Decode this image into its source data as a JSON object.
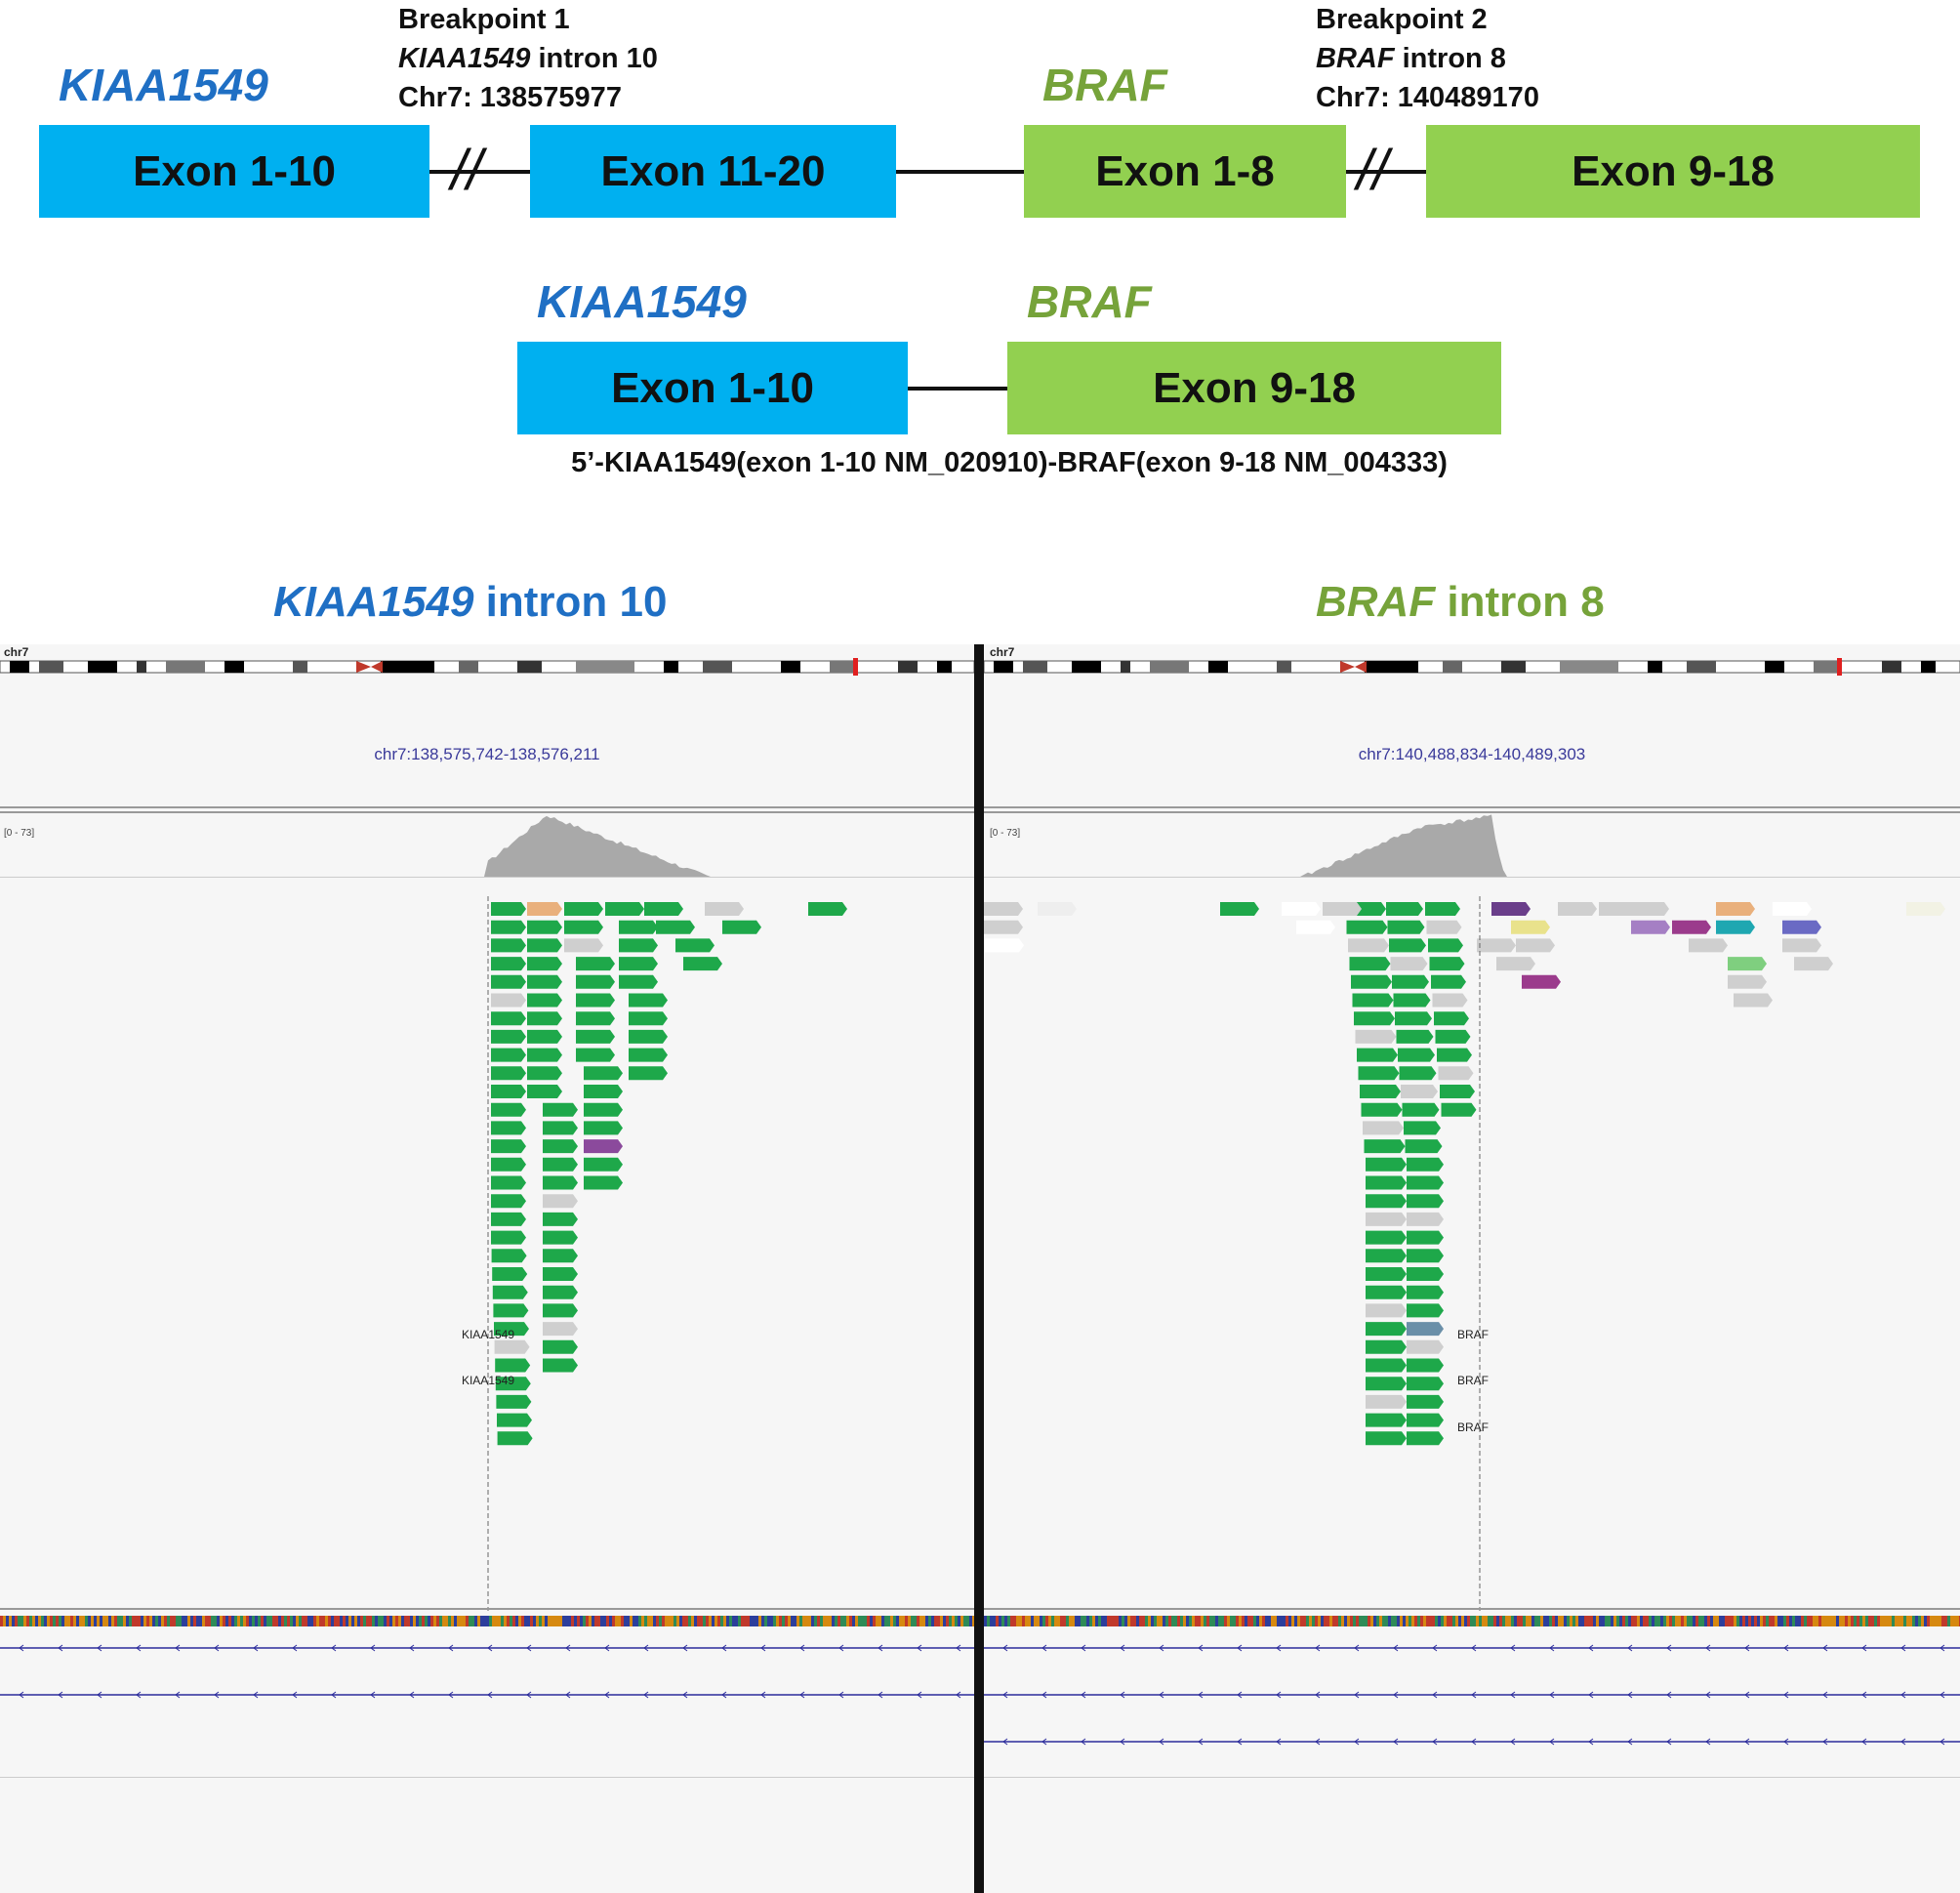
{
  "top": {
    "gene1": "KIAA1549",
    "gene2": "BRAF",
    "breakpoint1": {
      "title": "Breakpoint 1",
      "gene": "KIAA1549",
      "location": " intron 10",
      "coord": "Chr7: 138575977"
    },
    "breakpoint2": {
      "title": "Breakpoint 2",
      "gene": "BRAF",
      "location": " intron 8",
      "coord": "Chr7: 140489170"
    },
    "break_mark": "//",
    "exons": {
      "kiaa_a": "Exon 1-10",
      "kiaa_b": "Exon 11-20",
      "braf_a": "Exon 1-8",
      "braf_b": "Exon 9-18"
    }
  },
  "fusion": {
    "gene1": "KIAA1549",
    "gene2": "BRAF",
    "exon1": "Exon 1-10",
    "exon2": "Exon 9-18",
    "label": "5’-KIAA1549(exon 1-10 NM_020910)-BRAF(exon 9-18 NM_004333)"
  },
  "panels": {
    "left": {
      "title_gene": "KIAA1549",
      "title_rest": " intron 10",
      "chrom": "chr7",
      "locus": "chr7:138,575,742-138,576,211",
      "range": "[0 - 73]",
      "tracks": [
        "KIAA1549",
        "KIAA1549"
      ]
    },
    "right": {
      "title_gene": "BRAF",
      "title_rest": " intron 8",
      "chrom": "chr7",
      "locus": "chr7:140,488,834-140,489,303",
      "range": "[0 - 73]",
      "tracks": [
        "BRAF",
        "BRAF",
        "BRAF"
      ]
    }
  },
  "colors": {
    "kiaa_text": "#1f6fc4",
    "braf_text": "#76a33a",
    "kiaa_exon": "#00b0f0",
    "braf_exon": "#92d050",
    "read_green": "#1ea84a",
    "read_grey": "#cfcfcf",
    "coverage": "#a9a9a9",
    "gene_track": "#2b2b9c"
  }
}
